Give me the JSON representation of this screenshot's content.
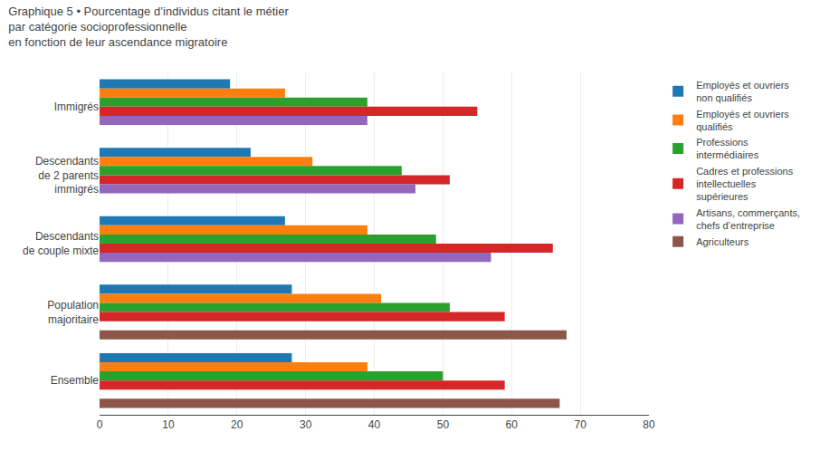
{
  "chart_data": {
    "type": "bar",
    "orientation": "horizontal",
    "title": "Graphique 5 • Pourcentage d’individus citant le métier\npar catégorie socioprofessionnelle\nen fonction de leur ascendance migratoire",
    "categories": [
      "Immigrés",
      "Descendants\nde 2 parents\nimmigrés",
      "Descendants\nde couple mixte",
      "Population\nmajoritaire",
      "Ensemble"
    ],
    "series": [
      {
        "name": "Employés et ouvriers\nnon qualifiés",
        "values": [
          19,
          22,
          27,
          28,
          28
        ]
      },
      {
        "name": "Employés et ouvriers\nqualifiés",
        "values": [
          27,
          31,
          39,
          41,
          39
        ]
      },
      {
        "name": "Professions\nintermédiaires",
        "values": [
          39,
          44,
          49,
          51,
          50
        ]
      },
      {
        "name": "Cadres et professions\nintellectuelles\nsupérieures",
        "values": [
          55,
          51,
          66,
          59,
          59
        ]
      },
      {
        "name": "Artisans, commerçants,\nchefs d’entreprise",
        "values": [
          39,
          46,
          57,
          null,
          null
        ]
      },
      {
        "name": "Agriculteurs",
        "values": [
          null,
          null,
          null,
          68,
          67
        ]
      }
    ],
    "xlim": [
      0,
      80
    ],
    "xticks": [
      0,
      10,
      20,
      30,
      40,
      50,
      60,
      70,
      80
    ],
    "grid": true,
    "legend": "right"
  }
}
